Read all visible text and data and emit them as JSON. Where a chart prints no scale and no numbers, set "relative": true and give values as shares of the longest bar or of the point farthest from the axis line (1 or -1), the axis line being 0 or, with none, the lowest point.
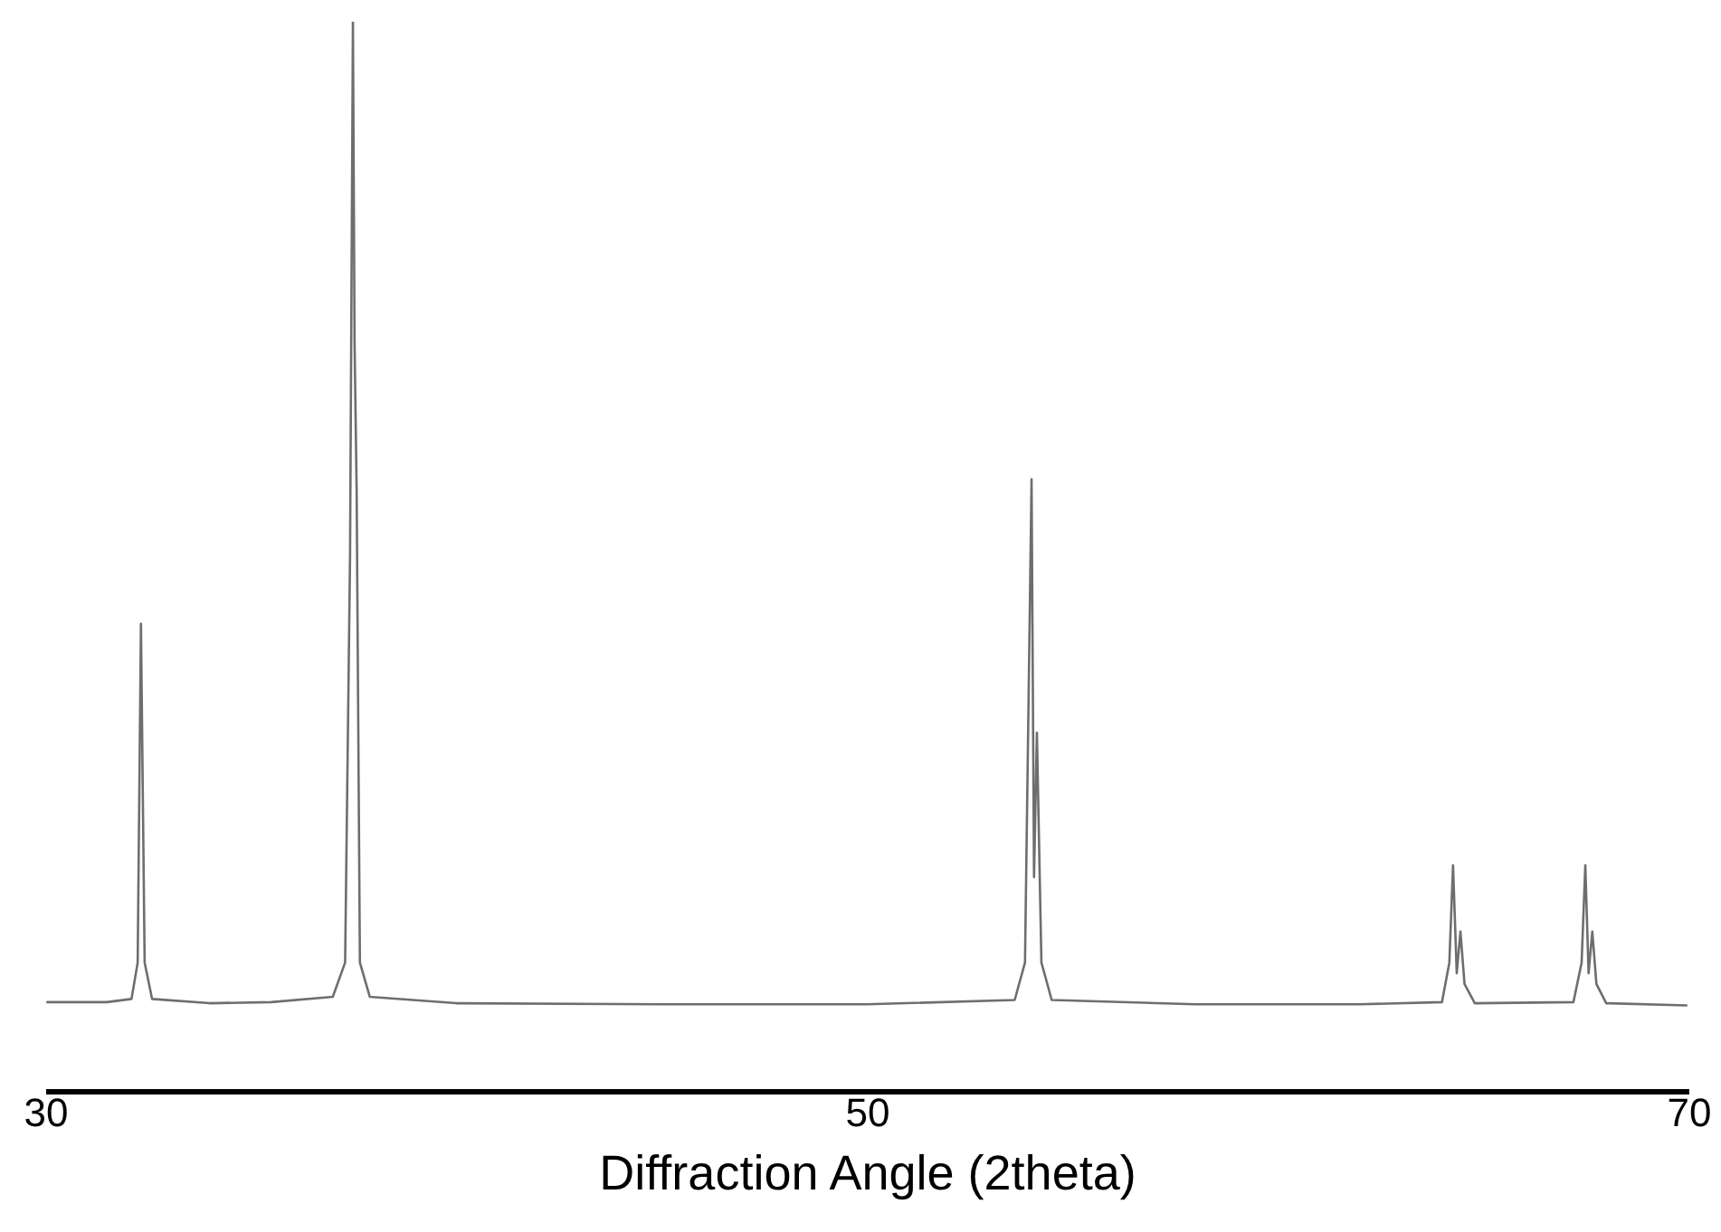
{
  "chart_data": {
    "type": "line",
    "relative": true,
    "xlabel": "Diffraction Angle (2theta)",
    "xlim": [
      30,
      70
    ],
    "xticks": [
      30,
      50,
      70
    ],
    "grid": false,
    "marker": "none",
    "line_style": "solid",
    "series": [
      {
        "color": "#6e6e6e",
        "x": [
          30.05,
          31.5,
          32.1,
          32.25,
          32.33,
          32.42,
          32.6,
          34,
          35.5,
          37.0,
          37.3,
          37.42,
          37.49,
          37.53,
          37.58,
          37.66,
          37.9,
          40,
          45,
          50,
          53.6,
          53.85,
          54.01,
          54.07,
          54.14,
          54.25,
          54.5,
          58,
          62,
          64.0,
          64.18,
          64.27,
          64.36,
          64.45,
          64.55,
          64.8,
          67.2,
          67.4,
          67.49,
          67.57,
          67.66,
          67.76,
          68.0,
          69.95
        ],
        "values": [
          0.083,
          0.083,
          0.086,
          0.12,
          0.437,
          0.12,
          0.086,
          0.082,
          0.083,
          0.088,
          0.12,
          0.5,
          1.0,
          0.7,
          0.563,
          0.12,
          0.088,
          0.082,
          0.081,
          0.081,
          0.085,
          0.12,
          0.572,
          0.2,
          0.335,
          0.12,
          0.085,
          0.081,
          0.081,
          0.083,
          0.12,
          0.211,
          0.11,
          0.149,
          0.1,
          0.082,
          0.083,
          0.12,
          0.211,
          0.11,
          0.149,
          0.1,
          0.082,
          0.08
        ]
      }
    ]
  }
}
